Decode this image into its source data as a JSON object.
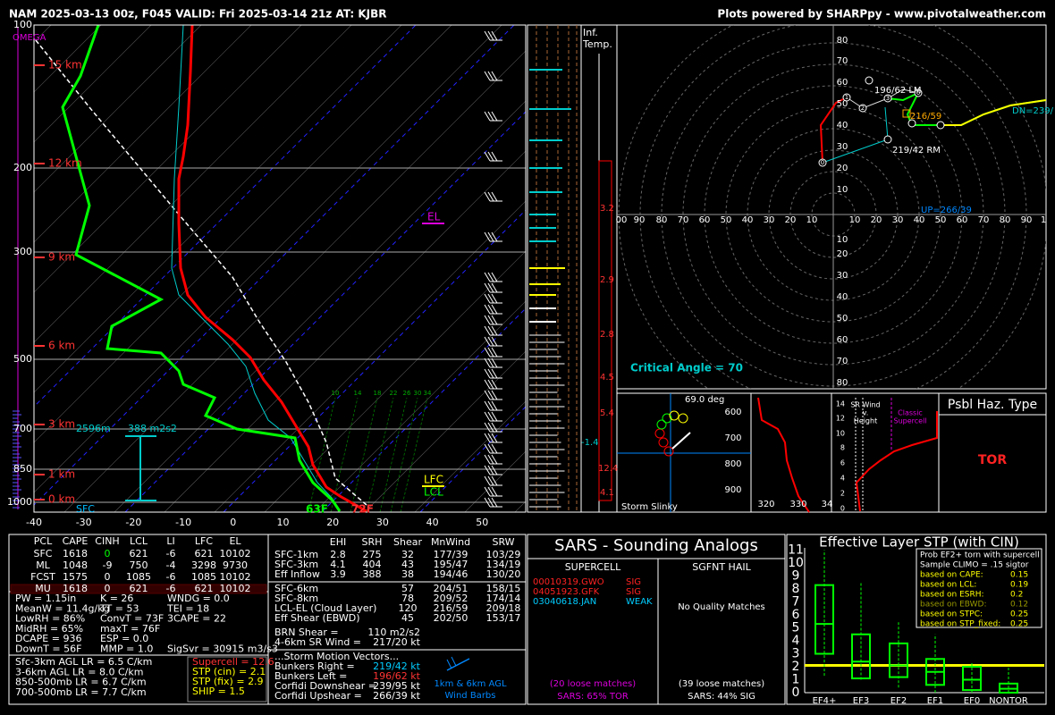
{
  "header": {
    "title": "NAM 2025-03-13 00z, F045  VALID: Fri 2025-03-14 21z  AT: KJBR",
    "credit": "Plots powered by SHARPpy - www.pivotalweather.com"
  },
  "skewt": {
    "pressure_labels": [
      "100",
      "200",
      "300",
      "500",
      "700",
      "850",
      "1000"
    ],
    "height_labels": [
      "15 km",
      "12 km",
      "9 km",
      "6 km",
      "3 km",
      "1 km",
      "0 km"
    ],
    "temp_labels": [
      "-40",
      "-30",
      "-20",
      "-10",
      "0",
      "10",
      "20",
      "30",
      "40",
      "50"
    ],
    "omega": "OMEGA",
    "el": "EL",
    "lfc": "LFC",
    "lcl": "LCL",
    "sfc_dewpoint": "63F",
    "sfc_temperature": "72F",
    "sfc": "SFC",
    "eff_inflow_base": "2596m",
    "eff_inflow_srh": "388 m2s2",
    "inflow_speeds": [
      "10",
      "14",
      "18",
      "22",
      "26",
      "30",
      "34"
    ]
  },
  "inferred_temp": {
    "label_lines": [
      "Inf.",
      "Temp."
    ],
    "values": [
      "3.2",
      "2.9",
      "2.8",
      "4.5",
      "5.4",
      "-1.4",
      "12.4",
      "4.1"
    ]
  },
  "hodograph": {
    "upper_ring_labels": [
      "80",
      "70",
      "60",
      "50",
      "40",
      "30",
      "20",
      "10"
    ],
    "left_axis_labels": [
      "00",
      "90",
      "80",
      "70",
      "60",
      "50",
      "40",
      "30",
      "20",
      "10"
    ],
    "right_axis_labels": [
      "10",
      "20",
      "30",
      "40",
      "50",
      "60",
      "70",
      "80",
      "90",
      "1"
    ],
    "lower_ring_labels": [
      "10",
      "20",
      "30",
      "40",
      "50",
      "60",
      "70",
      "80"
    ],
    "point_labels": [
      "0",
      "1",
      "2",
      "3",
      "6"
    ],
    "left_mover": "196/62 LM",
    "right_mover": "219/42 RM",
    "mean_wind": "216/59",
    "downshear": "DN=239/",
    "upshear": "UP=266/39",
    "critical_angle": "Critical Angle = 70"
  },
  "slinky": {
    "angle": "69.0 deg",
    "title": "Storm Slinky",
    "pressure_labels": [
      "600",
      "700",
      "800",
      "900"
    ],
    "theta_labels": [
      "320",
      "330",
      "34"
    ]
  },
  "sr_wind": {
    "height_labels": [
      "14",
      "12",
      "10",
      "8",
      "6",
      "4",
      "2",
      "0"
    ],
    "title_lines": [
      "SR Wind",
      "v.",
      "Height"
    ],
    "marker_lines": [
      "Classic",
      "Supercell"
    ]
  },
  "hazard": {
    "title": "Psbl Haz. Type",
    "value": "TOR"
  },
  "parcels": {
    "header": [
      "PCL",
      "CAPE",
      "CINH",
      "LCL",
      "LI",
      "LFC",
      "EL"
    ],
    "rows": [
      [
        "SFC",
        "1618",
        "0",
        "621",
        "-6",
        "621",
        "10102"
      ],
      [
        "ML",
        "1048",
        "-9",
        "750",
        "-4",
        "3298",
        "9730"
      ],
      [
        "FCST",
        "1575",
        "0",
        "1085",
        "-6",
        "1085",
        "10102"
      ],
      [
        "MU",
        "1618",
        "0",
        "621",
        "-6",
        "621",
        "10102"
      ]
    ]
  },
  "indices": [
    [
      "PW = 1.15in",
      "K = 26",
      "WNDG = 0.0"
    ],
    [
      "MeanW = 11.4g/kg",
      "TT = 53",
      "TEI = 18"
    ],
    [
      "LowRH = 86%",
      "ConvT = 73F",
      "3CAPE = 22"
    ],
    [
      "MidRH = 65%",
      "maxT = 76F"
    ],
    [
      "DCAPE = 936",
      "ESP = 0.0"
    ],
    [
      "DownT = 56F",
      "MMP = 1.0",
      "SigSvr = 30915 m3/s3"
    ]
  ],
  "lapse_rates": [
    "Sfc-3km AGL LR = 6.5 C/km",
    "3-6km AGL LR = 8.0 C/km",
    "850-500mb LR = 6.7 C/km",
    "700-500mb LR = 7.7 C/km"
  ],
  "composites": [
    "Supercell = 12.6",
    "STP (cin) = 2.1",
    "STP (fix) = 2.9",
    "SHIP = 1.5"
  ],
  "kinematics": {
    "header": [
      "EHI",
      "SRH",
      "Shear",
      "MnWind",
      "SRW"
    ],
    "rows": [
      [
        "SFC-1km",
        "2.8",
        "275",
        "32",
        "177/39",
        "103/29"
      ],
      [
        "SFC-3km",
        "4.1",
        "404",
        "43",
        "195/47",
        "134/19"
      ],
      [
        "Eff Inflow",
        "3.9",
        "388",
        "38",
        "194/46",
        "130/20"
      ]
    ],
    "shear_rows": [
      [
        "SFC-6km",
        "57",
        "204/51",
        "158/15"
      ],
      [
        "SFC-8km",
        "78",
        "209/52",
        "174/14"
      ],
      [
        "LCL-EL (Cloud Layer)",
        "120",
        "216/59",
        "209/18"
      ],
      [
        "Eff Shear (EBWD)",
        "45",
        "202/50",
        "153/17"
      ]
    ],
    "parameters": [
      [
        "BRN Shear =",
        "110 m2/s2"
      ],
      [
        "4-6km SR Wind =",
        "217/20 kt"
      ]
    ],
    "storm_motion_title": "...Storm Motion Vectors...",
    "storm_motion": [
      [
        "Bunkers Right =",
        "219/42 kt"
      ],
      [
        "Bunkers Left =",
        "196/62 kt"
      ],
      [
        "Corfidi Downshear =",
        "239/95 kt"
      ],
      [
        "Corfidi Upshear =",
        "266/39 kt"
      ]
    ],
    "wind_barbs_label": [
      "1km & 6km AGL",
      "Wind Barbs"
    ]
  },
  "sars": {
    "title": "SARS - Sounding Analogs",
    "supercell_title": "SUPERCELL",
    "hail_title": "SGFNT HAIL",
    "supercell_matches": [
      [
        "00010319.GWO",
        "SIG"
      ],
      [
        "04051923.GFK",
        "SIG"
      ],
      [
        "03040618.JAN",
        "WEAK"
      ]
    ],
    "hail_matches": "No Quality Matches",
    "supercell_loose": "(20 loose matches)",
    "supercell_summary": "SARS: 65% TOR",
    "hail_loose": "(39 loose matches)",
    "hail_summary": "SARS: 44% SIG"
  },
  "stp": {
    "title": "Effective Layer STP (with CIN)",
    "yticks": [
      "0",
      "1",
      "2",
      "3",
      "4",
      "5",
      "6",
      "7",
      "8",
      "9",
      "10",
      "11"
    ],
    "categories": [
      "EF4+",
      "EF3",
      "EF2",
      "EF1",
      "EF0",
      "NONTOR"
    ],
    "legend_lines": [
      "Prob EF2+ torn with supercell",
      "Sample CLIMO = .15 sigtor"
    ],
    "probabilities": [
      [
        "based on CAPE:",
        "0.15"
      ],
      [
        "based on LCL:",
        "0.19"
      ],
      [
        "based on ESRH:",
        "0.2"
      ],
      [
        "based on EBWD:",
        "0.12"
      ],
      [
        "based on STPC:",
        "0.25"
      ],
      [
        "based on STP_fixed:",
        "0.25"
      ]
    ]
  }
}
